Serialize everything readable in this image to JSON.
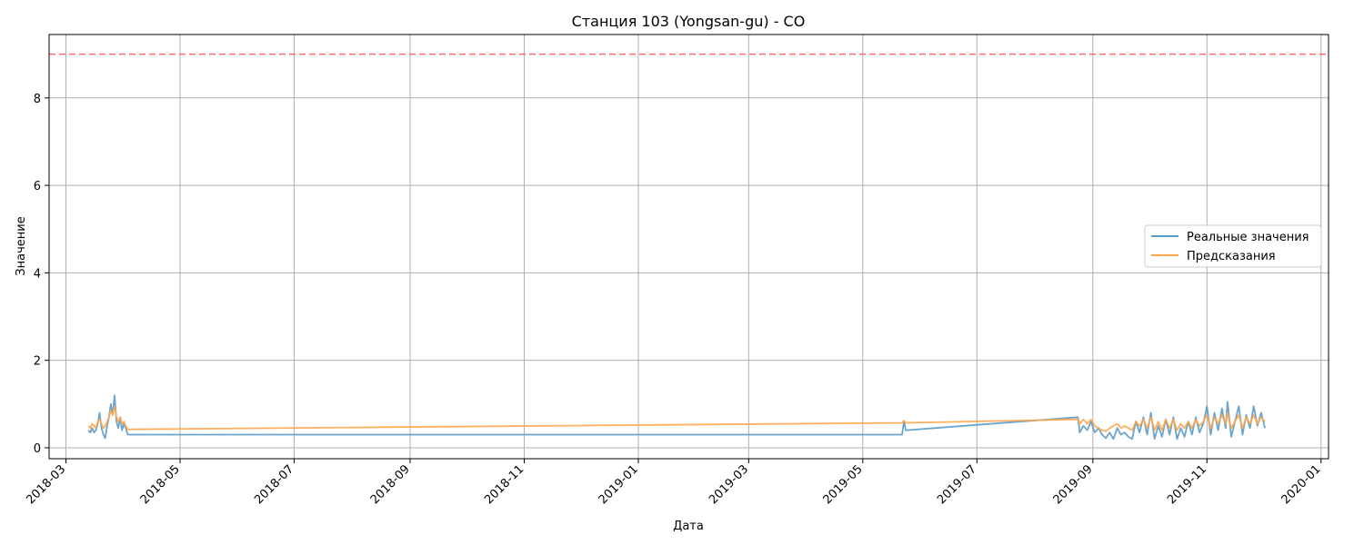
{
  "chart_data": {
    "type": "line",
    "title": "Станция 103 (Yongsan-gu) - CO",
    "xlabel": "Дата",
    "ylabel": "Значение",
    "x_tick_labels": [
      "2018-03",
      "2018-05",
      "2018-07",
      "2018-09",
      "2018-11",
      "2019-01",
      "2019-03",
      "2019-05",
      "2019-07",
      "2019-09",
      "2019-11",
      "2020-01"
    ],
    "y_tick_labels": [
      "0",
      "2",
      "4",
      "6",
      "8"
    ],
    "xlim": [
      "2018-02-20",
      "2020-01-05"
    ],
    "ylim": [
      -0.25,
      9.45
    ],
    "grid": true,
    "legend_position": "center-right",
    "threshold": {
      "value": 9.0,
      "color": "#ff6b6b",
      "style": "dashed"
    },
    "series": [
      {
        "name": "Реальные значения",
        "color": "#5b9bc7",
        "points": [
          [
            "2018-03-13",
            0.4
          ],
          [
            "2018-03-14",
            0.35
          ],
          [
            "2018-03-15",
            0.45
          ],
          [
            "2018-03-16",
            0.35
          ],
          [
            "2018-03-17",
            0.4
          ],
          [
            "2018-03-18",
            0.55
          ],
          [
            "2018-03-19",
            0.8
          ],
          [
            "2018-03-20",
            0.45
          ],
          [
            "2018-03-21",
            0.3
          ],
          [
            "2018-03-22",
            0.22
          ],
          [
            "2018-03-23",
            0.5
          ],
          [
            "2018-03-24",
            0.7
          ],
          [
            "2018-03-25",
            1.0
          ],
          [
            "2018-03-26",
            0.75
          ],
          [
            "2018-03-27",
            1.2
          ],
          [
            "2018-03-28",
            0.6
          ],
          [
            "2018-03-29",
            0.45
          ],
          [
            "2018-03-30",
            0.7
          ],
          [
            "2018-03-31",
            0.4
          ],
          [
            "2018-04-01",
            0.55
          ],
          [
            "2018-04-02",
            0.45
          ],
          [
            "2018-04-03",
            0.3
          ],
          [
            "2019-05-22",
            0.3
          ],
          [
            "2019-05-23",
            0.6
          ],
          [
            "2019-05-24",
            0.4
          ],
          [
            "2019-08-24",
            0.7
          ],
          [
            "2019-08-25",
            0.35
          ],
          [
            "2019-08-27",
            0.5
          ],
          [
            "2019-08-29",
            0.4
          ],
          [
            "2019-08-31",
            0.6
          ],
          [
            "2019-09-02",
            0.35
          ],
          [
            "2019-09-04",
            0.45
          ],
          [
            "2019-09-06",
            0.3
          ],
          [
            "2019-09-08",
            0.22
          ],
          [
            "2019-09-10",
            0.35
          ],
          [
            "2019-09-12",
            0.2
          ],
          [
            "2019-09-14",
            0.45
          ],
          [
            "2019-09-16",
            0.3
          ],
          [
            "2019-09-18",
            0.35
          ],
          [
            "2019-09-20",
            0.25
          ],
          [
            "2019-09-22",
            0.2
          ],
          [
            "2019-09-24",
            0.6
          ],
          [
            "2019-09-26",
            0.35
          ],
          [
            "2019-09-28",
            0.7
          ],
          [
            "2019-09-30",
            0.3
          ],
          [
            "2019-10-02",
            0.8
          ],
          [
            "2019-10-04",
            0.2
          ],
          [
            "2019-10-06",
            0.5
          ],
          [
            "2019-10-08",
            0.25
          ],
          [
            "2019-10-10",
            0.65
          ],
          [
            "2019-10-12",
            0.3
          ],
          [
            "2019-10-14",
            0.7
          ],
          [
            "2019-10-16",
            0.2
          ],
          [
            "2019-10-18",
            0.45
          ],
          [
            "2019-10-20",
            0.25
          ],
          [
            "2019-10-22",
            0.6
          ],
          [
            "2019-10-24",
            0.3
          ],
          [
            "2019-10-26",
            0.7
          ],
          [
            "2019-10-28",
            0.35
          ],
          [
            "2019-10-30",
            0.55
          ],
          [
            "2019-11-01",
            0.95
          ],
          [
            "2019-11-03",
            0.3
          ],
          [
            "2019-11-05",
            0.8
          ],
          [
            "2019-11-07",
            0.4
          ],
          [
            "2019-11-09",
            0.9
          ],
          [
            "2019-11-11",
            0.45
          ],
          [
            "2019-11-12",
            1.05
          ],
          [
            "2019-11-14",
            0.25
          ],
          [
            "2019-11-16",
            0.6
          ],
          [
            "2019-11-18",
            0.95
          ],
          [
            "2019-11-20",
            0.3
          ],
          [
            "2019-11-22",
            0.75
          ],
          [
            "2019-11-24",
            0.45
          ],
          [
            "2019-11-26",
            0.95
          ],
          [
            "2019-11-28",
            0.5
          ],
          [
            "2019-11-30",
            0.8
          ],
          [
            "2019-12-02",
            0.45
          ]
        ]
      },
      {
        "name": "Предсказания",
        "color": "#ffa64d",
        "points": [
          [
            "2018-03-13",
            0.5
          ],
          [
            "2018-03-14",
            0.45
          ],
          [
            "2018-03-15",
            0.55
          ],
          [
            "2018-03-16",
            0.5
          ],
          [
            "2018-03-17",
            0.45
          ],
          [
            "2018-03-18",
            0.6
          ],
          [
            "2018-03-19",
            0.65
          ],
          [
            "2018-03-20",
            0.55
          ],
          [
            "2018-03-21",
            0.45
          ],
          [
            "2018-03-22",
            0.5
          ],
          [
            "2018-03-23",
            0.6
          ],
          [
            "2018-03-24",
            0.7
          ],
          [
            "2018-03-25",
            0.85
          ],
          [
            "2018-03-26",
            0.75
          ],
          [
            "2018-03-27",
            0.95
          ],
          [
            "2018-03-28",
            0.7
          ],
          [
            "2018-03-29",
            0.6
          ],
          [
            "2018-03-30",
            0.7
          ],
          [
            "2018-03-31",
            0.55
          ],
          [
            "2018-04-01",
            0.6
          ],
          [
            "2018-04-02",
            0.5
          ],
          [
            "2018-04-03",
            0.42
          ],
          [
            "2019-05-22",
            0.57
          ],
          [
            "2019-05-23",
            0.62
          ],
          [
            "2019-05-24",
            0.57
          ],
          [
            "2019-08-24",
            0.65
          ],
          [
            "2019-08-25",
            0.55
          ],
          [
            "2019-08-27",
            0.65
          ],
          [
            "2019-08-29",
            0.55
          ],
          [
            "2019-08-31",
            0.65
          ],
          [
            "2019-09-02",
            0.5
          ],
          [
            "2019-09-04",
            0.45
          ],
          [
            "2019-09-06",
            0.4
          ],
          [
            "2019-09-08",
            0.38
          ],
          [
            "2019-09-10",
            0.45
          ],
          [
            "2019-09-12",
            0.5
          ],
          [
            "2019-09-14",
            0.55
          ],
          [
            "2019-09-16",
            0.45
          ],
          [
            "2019-09-18",
            0.5
          ],
          [
            "2019-09-20",
            0.45
          ],
          [
            "2019-09-22",
            0.4
          ],
          [
            "2019-09-24",
            0.6
          ],
          [
            "2019-09-26",
            0.5
          ],
          [
            "2019-09-28",
            0.65
          ],
          [
            "2019-09-30",
            0.45
          ],
          [
            "2019-10-02",
            0.7
          ],
          [
            "2019-10-04",
            0.4
          ],
          [
            "2019-10-06",
            0.6
          ],
          [
            "2019-10-08",
            0.4
          ],
          [
            "2019-10-10",
            0.65
          ],
          [
            "2019-10-12",
            0.45
          ],
          [
            "2019-10-14",
            0.65
          ],
          [
            "2019-10-16",
            0.4
          ],
          [
            "2019-10-18",
            0.55
          ],
          [
            "2019-10-20",
            0.45
          ],
          [
            "2019-10-22",
            0.6
          ],
          [
            "2019-10-24",
            0.45
          ],
          [
            "2019-10-26",
            0.65
          ],
          [
            "2019-10-28",
            0.5
          ],
          [
            "2019-10-30",
            0.6
          ],
          [
            "2019-11-01",
            0.75
          ],
          [
            "2019-11-03",
            0.45
          ],
          [
            "2019-11-05",
            0.7
          ],
          [
            "2019-11-07",
            0.55
          ],
          [
            "2019-11-09",
            0.75
          ],
          [
            "2019-11-11",
            0.55
          ],
          [
            "2019-11-12",
            0.8
          ],
          [
            "2019-11-14",
            0.45
          ],
          [
            "2019-11-16",
            0.6
          ],
          [
            "2019-11-18",
            0.75
          ],
          [
            "2019-11-20",
            0.45
          ],
          [
            "2019-11-22",
            0.7
          ],
          [
            "2019-11-24",
            0.55
          ],
          [
            "2019-11-26",
            0.75
          ],
          [
            "2019-11-28",
            0.55
          ],
          [
            "2019-11-30",
            0.7
          ],
          [
            "2019-12-02",
            0.6
          ]
        ]
      }
    ]
  }
}
